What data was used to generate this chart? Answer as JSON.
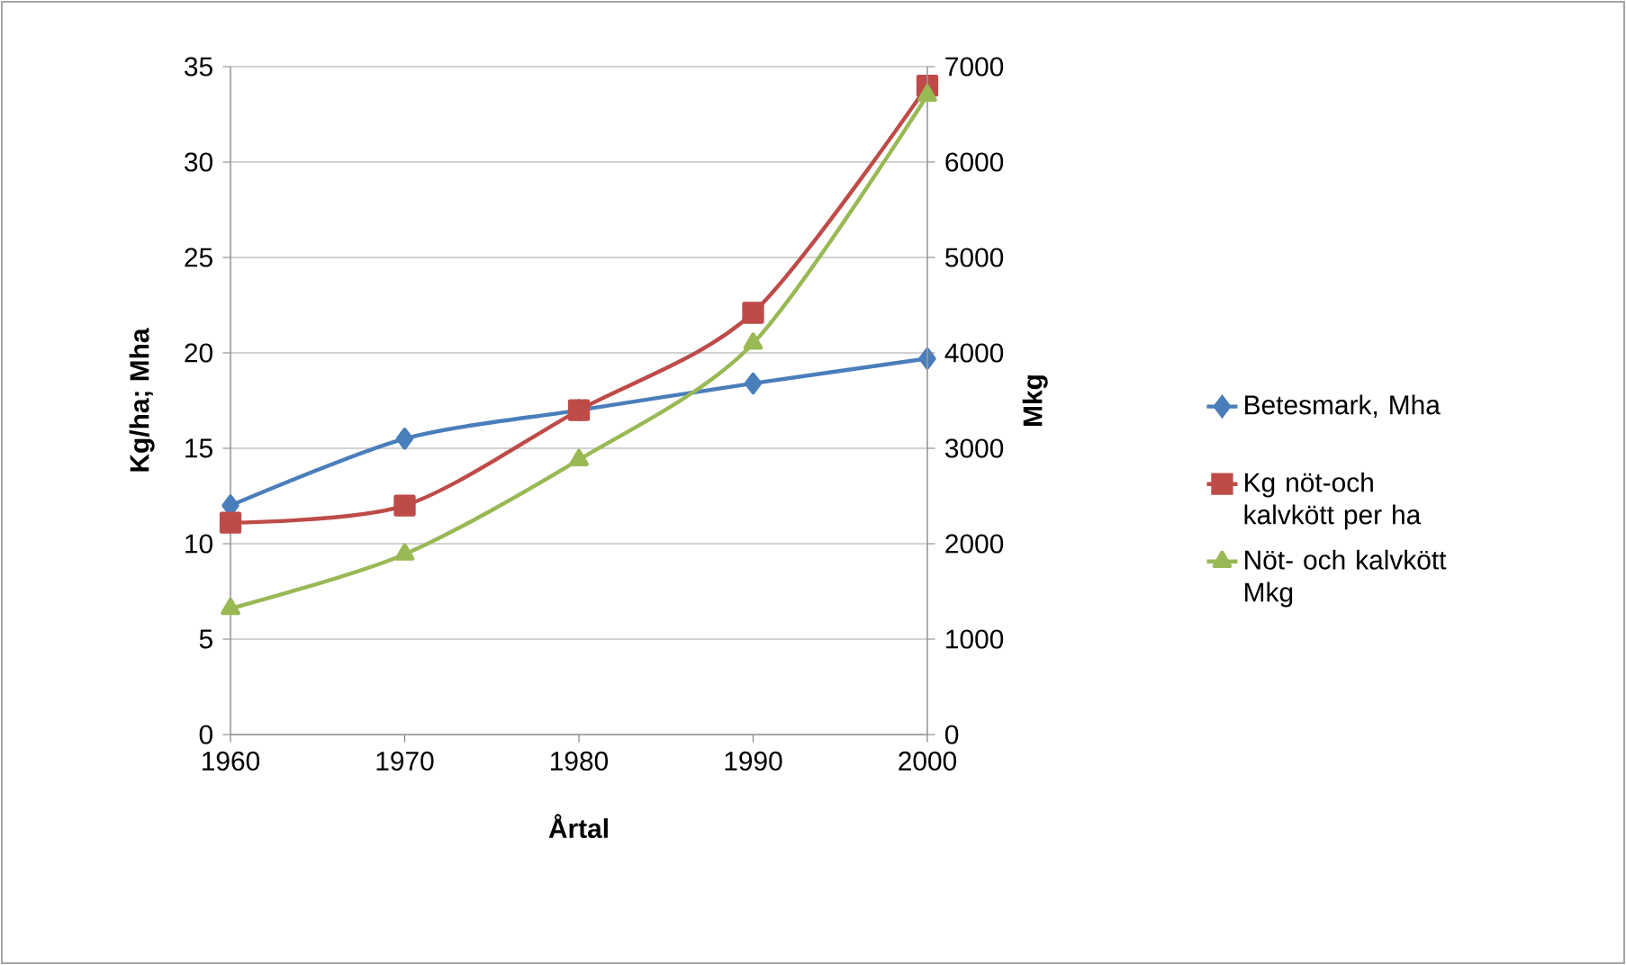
{
  "chart_data": {
    "type": "line",
    "xlabel": "Årtal",
    "ylabel": "Kg/ha; Mha",
    "y2label": "Mkg",
    "x": [
      1960,
      1970,
      1980,
      1990,
      2000
    ],
    "xlim": [
      1960,
      2000
    ],
    "xticks": [
      1960,
      1970,
      1980,
      1990,
      2000
    ],
    "ylim": [
      0,
      35
    ],
    "yticks": [
      0,
      5,
      10,
      15,
      20,
      25,
      30,
      35
    ],
    "y2lim": [
      0,
      7000
    ],
    "y2ticks": [
      0,
      1000,
      2000,
      3000,
      4000,
      5000,
      6000,
      7000
    ],
    "grid": "y",
    "legend": "right",
    "series": [
      {
        "name": "Betesmark, Mha",
        "color": "#4a7ebb",
        "marker": "diamond",
        "values": [
          12,
          15.5,
          17,
          18.4,
          19.7
        ]
      },
      {
        "name": "Kg nöt-och kalvkött per ha",
        "color": "#be4b48",
        "marker": "square",
        "values": [
          11.1,
          12,
          17,
          22.1,
          34
        ]
      },
      {
        "name": "Nöt- och kalvkött Mkg",
        "color": "#98b954",
        "marker": "triangle",
        "axis": "y2",
        "values": [
          1320,
          1890,
          2880,
          4100,
          6700
        ]
      }
    ]
  }
}
